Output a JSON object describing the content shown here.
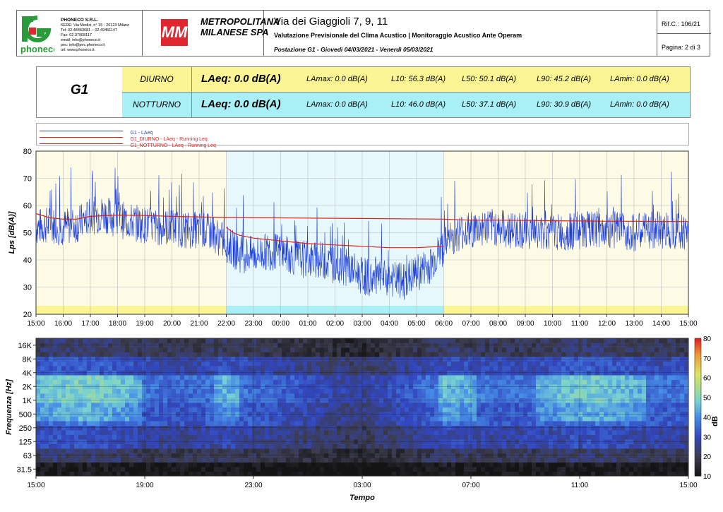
{
  "header": {
    "company": {
      "name": "PHONECO S.R.L.",
      "lines": [
        "SEDE: Via Medici, n° 15 - 20123 Milano",
        "Tel: 02.48463681 – 02.49451147",
        "Fax: 02.37908117",
        "email: info@phoneco.it",
        "pec: info@pec.phoneco.it",
        "url: www.phoneco.it"
      ],
      "logo_text": "phoneco"
    },
    "client": {
      "logo_text": "MM",
      "name_line1": "METROPOLITANA",
      "name_line2": "MILANESE SPA"
    },
    "address": "Via dei Giaggioli 7, 9, 11",
    "subtitle": "Valutazione Previsionale del Clima Acustico | Monitoraggio Acustico Ante Operam",
    "postazione": "Postazione G1 - Giovedì 04/03/2021 - Venerdì 05/03/2021",
    "ref": "Rif.C.: 106/21",
    "page": "Pagina: 2 di 3"
  },
  "summary": {
    "station": "G1",
    "rows": [
      {
        "period": "DIURNO",
        "laeq": "LAeq: 0.0 dB(A)",
        "lamax": "LAmax: 0.0 dB(A)",
        "l10": "L10: 56.3 dB(A)",
        "l50": "L50: 50.1 dB(A)",
        "l90": "L90: 45.2 dB(A)",
        "lamin": "LAmin: 0.0 dB(A)",
        "color": "#fbf593"
      },
      {
        "period": "NOTTURNO",
        "laeq": "LAeq: 0.0 dB(A)",
        "lamax": "LAmax: 0.0 dB(A)",
        "l10": "L10: 46.0 dB(A)",
        "l50": "L50: 37.1 dB(A)",
        "l90": "L90: 30.9 dB(A)",
        "lamin": "LAmin: 0.0 dB(A)",
        "color": "#a8f0f5"
      }
    ]
  },
  "legend": [
    {
      "label": "G1 - LAeq",
      "color": "#1f3fd6"
    },
    {
      "label": "G1_DIURNO - LAeq - Running Leq",
      "color": "#e02020"
    },
    {
      "label": "G1_NOTTURNO - LAeq - Running Leq",
      "color": "#e02020"
    }
  ],
  "chart_data": [
    {
      "type": "line",
      "ylabel": "Lps [dB(A)]",
      "xlabel": "",
      "ylim": [
        20,
        80
      ],
      "yticks": [
        20,
        30,
        40,
        50,
        60,
        70,
        80
      ],
      "x_ticks": [
        "15:00",
        "16:00",
        "17:00",
        "18:00",
        "19:00",
        "20:00",
        "21:00",
        "22:00",
        "23:00",
        "00:00",
        "01:00",
        "02:00",
        "03:00",
        "04:00",
        "05:00",
        "06:00",
        "07:00",
        "08:00",
        "09:00",
        "10:00",
        "11:00",
        "12:00",
        "13:00",
        "14:00",
        "15:00"
      ],
      "grid": true,
      "night_band": [
        "22:00",
        "06:00"
      ],
      "colors": {
        "day_bg": "#fdfbe6",
        "night_bg": "#e6f8fb",
        "day_strip": "#fbf593",
        "night_strip": "#a8f0f5"
      },
      "series": [
        {
          "name": "G1 - LAeq",
          "x": [
            "15:00",
            "15:30",
            "16:00",
            "16:30",
            "17:00",
            "17:30",
            "18:00",
            "18:30",
            "19:00",
            "19:30",
            "20:00",
            "20:30",
            "21:00",
            "21:30",
            "22:00",
            "22:30",
            "23:00",
            "23:30",
            "00:00",
            "00:30",
            "01:00",
            "01:30",
            "02:00",
            "02:30",
            "03:00",
            "03:30",
            "04:00",
            "04:30",
            "05:00",
            "05:30",
            "06:00",
            "06:30",
            "07:00",
            "07:30",
            "08:00",
            "08:30",
            "09:00",
            "09:30",
            "10:00",
            "10:30",
            "11:00",
            "11:30",
            "12:00",
            "12:30",
            "13:00",
            "13:30",
            "14:00",
            "14:30",
            "15:00"
          ],
          "values": [
            52,
            53,
            52,
            53,
            56,
            57,
            55,
            54,
            53,
            52,
            52,
            51,
            51,
            50,
            46,
            42,
            42,
            43,
            43,
            41,
            40,
            40,
            38,
            37,
            34,
            33,
            33,
            32,
            35,
            38,
            45,
            50,
            51,
            52,
            52,
            51,
            51,
            50,
            50,
            50,
            51,
            51,
            51,
            51,
            50,
            51,
            51,
            51,
            50
          ]
        },
        {
          "name": "G1_DIURNO - LAeq - Running Leq",
          "x": [
            "15:00",
            "15:30",
            "16:00",
            "16:30",
            "16:45",
            "17:00",
            "18:00",
            "19:00",
            "20:00",
            "21:00",
            "22:00",
            "06:00",
            "07:00",
            "08:00",
            "09:00",
            "10:00",
            "11:00",
            "12:00",
            "13:00",
            "14:00",
            "15:00"
          ],
          "values": [
            57,
            55.5,
            55,
            55,
            55.5,
            56,
            56.5,
            56.3,
            56,
            55.8,
            55.6,
            55,
            54.6,
            54.6,
            54.5,
            54.4,
            54.3,
            54.2,
            54.2,
            54.1,
            54.1
          ]
        },
        {
          "name": "G1_NOTTURNO - LAeq - Running Leq",
          "x": [
            "22:00",
            "22:15",
            "22:30",
            "23:00",
            "00:00",
            "01:00",
            "02:00",
            "03:00",
            "04:00",
            "05:00",
            "06:00"
          ],
          "values": [
            52,
            50,
            49,
            48,
            47,
            46,
            45.5,
            45,
            44.5,
            44.5,
            45
          ]
        }
      ]
    },
    {
      "type": "heatmap",
      "ylabel": "Frequenza [Hz]",
      "xlabel": "Tempo",
      "y_ticks": [
        "31.5",
        "63",
        "125",
        "250",
        "500",
        "1K",
        "2K",
        "4K",
        "8K",
        "16K"
      ],
      "x_ticks": [
        "15:00",
        "19:00",
        "23:00",
        "03:00",
        "07:00",
        "11:00",
        "15:00"
      ],
      "colorbar": {
        "label": "dB",
        "min": 10,
        "max": 80,
        "ticks": [
          10,
          20,
          30,
          40,
          50,
          60,
          70,
          80
        ]
      }
    }
  ]
}
